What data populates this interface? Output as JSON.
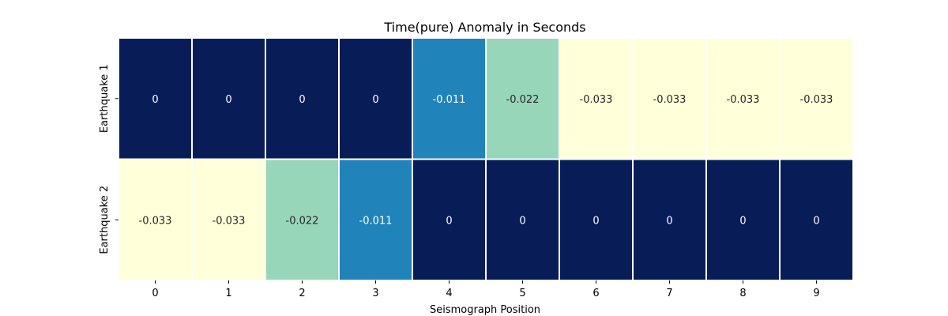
{
  "chart_data": {
    "type": "heatmap",
    "title": "Time(pure) Anomaly in Seconds",
    "xlabel": "Seismograph Position",
    "ylabel": "",
    "x_categories": [
      "0",
      "1",
      "2",
      "3",
      "4",
      "5",
      "6",
      "7",
      "8",
      "9"
    ],
    "y_categories": [
      "Earthquake 1",
      "Earthquake 2"
    ],
    "values": [
      [
        0,
        0,
        0,
        0,
        -0.011,
        -0.022,
        -0.033,
        -0.033,
        -0.033,
        -0.033
      ],
      [
        -0.033,
        -0.033,
        -0.022,
        -0.011,
        0,
        0,
        0,
        0,
        0,
        0
      ]
    ],
    "value_labels": [
      [
        "0",
        "0",
        "0",
        "0",
        "-0.011",
        "-0.022",
        "-0.033",
        "-0.033",
        "-0.033",
        "-0.033"
      ],
      [
        "-0.033",
        "-0.033",
        "-0.022",
        "-0.011",
        "0",
        "0",
        "0",
        "0",
        "0",
        "0"
      ]
    ],
    "colormap": "YlGnBu_r",
    "colors": {
      "-0.033": "#ffffd9",
      "-0.022": "#97d6b9",
      "-0.011": "#2083b9",
      "0": "#081d58"
    },
    "label_colors": {
      "light": "#ffffff",
      "dark": "#262626"
    },
    "grid": false,
    "colorbar": false
  }
}
